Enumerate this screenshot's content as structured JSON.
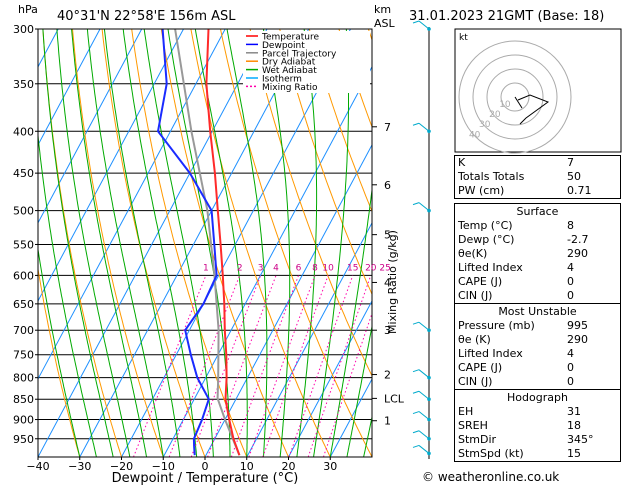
{
  "header": {
    "units": "hPa",
    "location": "40°31'N  22°58'E  156m  ASL",
    "km_label": "km",
    "asl_label": "ASL",
    "datetime": "31.01.2023  21GMT  (Base: 18)"
  },
  "legend": [
    {
      "label": "Temperature",
      "color": "#ff0000",
      "dash": ""
    },
    {
      "label": "Dewpoint",
      "color": "#0000ff",
      "dash": ""
    },
    {
      "label": "Parcel Trajectory",
      "color": "#888888",
      "dash": ""
    },
    {
      "label": "Dry Adiabat",
      "color": "#ff8800",
      "dash": ""
    },
    {
      "label": "Wet Adiabat",
      "color": "#00aa00",
      "dash": ""
    },
    {
      "label": "Isotherm",
      "color": "#00aaff",
      "dash": ""
    },
    {
      "label": "Mixing Ratio",
      "color": "#ff00aa",
      "dash": "2,2"
    }
  ],
  "chart_data": {
    "type": "skew-t",
    "xlabel": "Dewpoint / Temperature (°C)",
    "right_axis_label": "Mixing Ratio (g/kg)",
    "pressure_levels": [
      300,
      350,
      400,
      450,
      500,
      550,
      600,
      650,
      700,
      750,
      800,
      850,
      900,
      950
    ],
    "temp_ticks": [
      -40,
      -30,
      -20,
      -10,
      0,
      10,
      20,
      30
    ],
    "xlim": [
      -40,
      40
    ],
    "plim": [
      300,
      1000
    ],
    "mixing_ratio_labels": [
      "1",
      "2",
      "3",
      "4",
      "6",
      "8",
      "10",
      "15",
      "20",
      "25"
    ],
    "mixing_ratio_values": [
      1,
      2,
      3,
      4,
      6,
      8,
      10,
      15,
      20,
      25
    ],
    "km_ticks": [
      {
        "label": "1",
        "p": 903
      },
      {
        "label": "2",
        "p": 793
      },
      {
        "label": "LCL",
        "p": 848
      },
      {
        "label": "3",
        "p": 700
      },
      {
        "label": "4",
        "p": 612
      },
      {
        "label": "5",
        "p": 535
      },
      {
        "label": "6",
        "p": 465
      },
      {
        "label": "7",
        "p": 395
      }
    ],
    "temperature": [
      {
        "p": 995,
        "t": 8
      },
      {
        "p": 950,
        "t": 4.5
      },
      {
        "p": 900,
        "t": 1
      },
      {
        "p": 850,
        "t": -2.5
      },
      {
        "p": 800,
        "t": -5
      },
      {
        "p": 750,
        "t": -8
      },
      {
        "p": 700,
        "t": -11.5
      },
      {
        "p": 650,
        "t": -15
      },
      {
        "p": 600,
        "t": -19
      },
      {
        "p": 550,
        "t": -23.5
      },
      {
        "p": 500,
        "t": -28.5
      },
      {
        "p": 450,
        "t": -34
      },
      {
        "p": 400,
        "t": -40.5
      },
      {
        "p": 350,
        "t": -47.5
      },
      {
        "p": 300,
        "t": -54
      }
    ],
    "dewpoint": [
      {
        "p": 995,
        "t": -2.7
      },
      {
        "p": 970,
        "t": -4
      },
      {
        "p": 950,
        "t": -5
      },
      {
        "p": 900,
        "t": -5.5
      },
      {
        "p": 850,
        "t": -6.5
      },
      {
        "p": 800,
        "t": -12
      },
      {
        "p": 750,
        "t": -16.5
      },
      {
        "p": 700,
        "t": -21
      },
      {
        "p": 650,
        "t": -20
      },
      {
        "p": 600,
        "t": -20.5
      },
      {
        "p": 550,
        "t": -25
      },
      {
        "p": 500,
        "t": -30
      },
      {
        "p": 450,
        "t": -40
      },
      {
        "p": 400,
        "t": -53
      },
      {
        "p": 350,
        "t": -57
      },
      {
        "p": 300,
        "t": -65
      }
    ],
    "parcel": [
      {
        "p": 995,
        "t": 8
      },
      {
        "p": 900,
        "t": 0
      },
      {
        "p": 848,
        "t": -4.5
      },
      {
        "p": 800,
        "t": -7
      },
      {
        "p": 700,
        "t": -13
      },
      {
        "p": 600,
        "t": -21
      },
      {
        "p": 500,
        "t": -31
      },
      {
        "p": 400,
        "t": -45
      },
      {
        "p": 300,
        "t": -62
      }
    ]
  },
  "hodograph": {
    "label": "kt",
    "ring_labels": [
      "10",
      "20",
      "30",
      "40"
    ]
  },
  "indices": [
    {
      "label": "K",
      "value": "7"
    },
    {
      "label": "Totals Totals",
      "value": "50"
    },
    {
      "label": "PW (cm)",
      "value": "0.71"
    }
  ],
  "surface": {
    "title": "Surface",
    "rows": [
      {
        "label": "Temp (°C)",
        "value": "8"
      },
      {
        "label": "Dewp (°C)",
        "value": "-2.7"
      },
      {
        "label": "θe(K)",
        "value": "290"
      },
      {
        "label": "Lifted Index",
        "value": "4"
      },
      {
        "label": "CAPE (J)",
        "value": "0"
      },
      {
        "label": "CIN (J)",
        "value": "0"
      }
    ]
  },
  "most_unstable": {
    "title": "Most Unstable",
    "rows": [
      {
        "label": "Pressure (mb)",
        "value": "995"
      },
      {
        "label": "θe (K)",
        "value": "290"
      },
      {
        "label": "Lifted Index",
        "value": "4"
      },
      {
        "label": "CAPE (J)",
        "value": "0"
      },
      {
        "label": "CIN (J)",
        "value": "0"
      }
    ]
  },
  "hodograph_table": {
    "title": "Hodograph",
    "rows": [
      {
        "label": "EH",
        "value": "31"
      },
      {
        "label": "SREH",
        "value": "18"
      },
      {
        "label": "StmDir",
        "value": "345°"
      },
      {
        "label": "StmSpd (kt)",
        "value": "15"
      }
    ]
  },
  "footer": "© weatheronline.co.uk"
}
